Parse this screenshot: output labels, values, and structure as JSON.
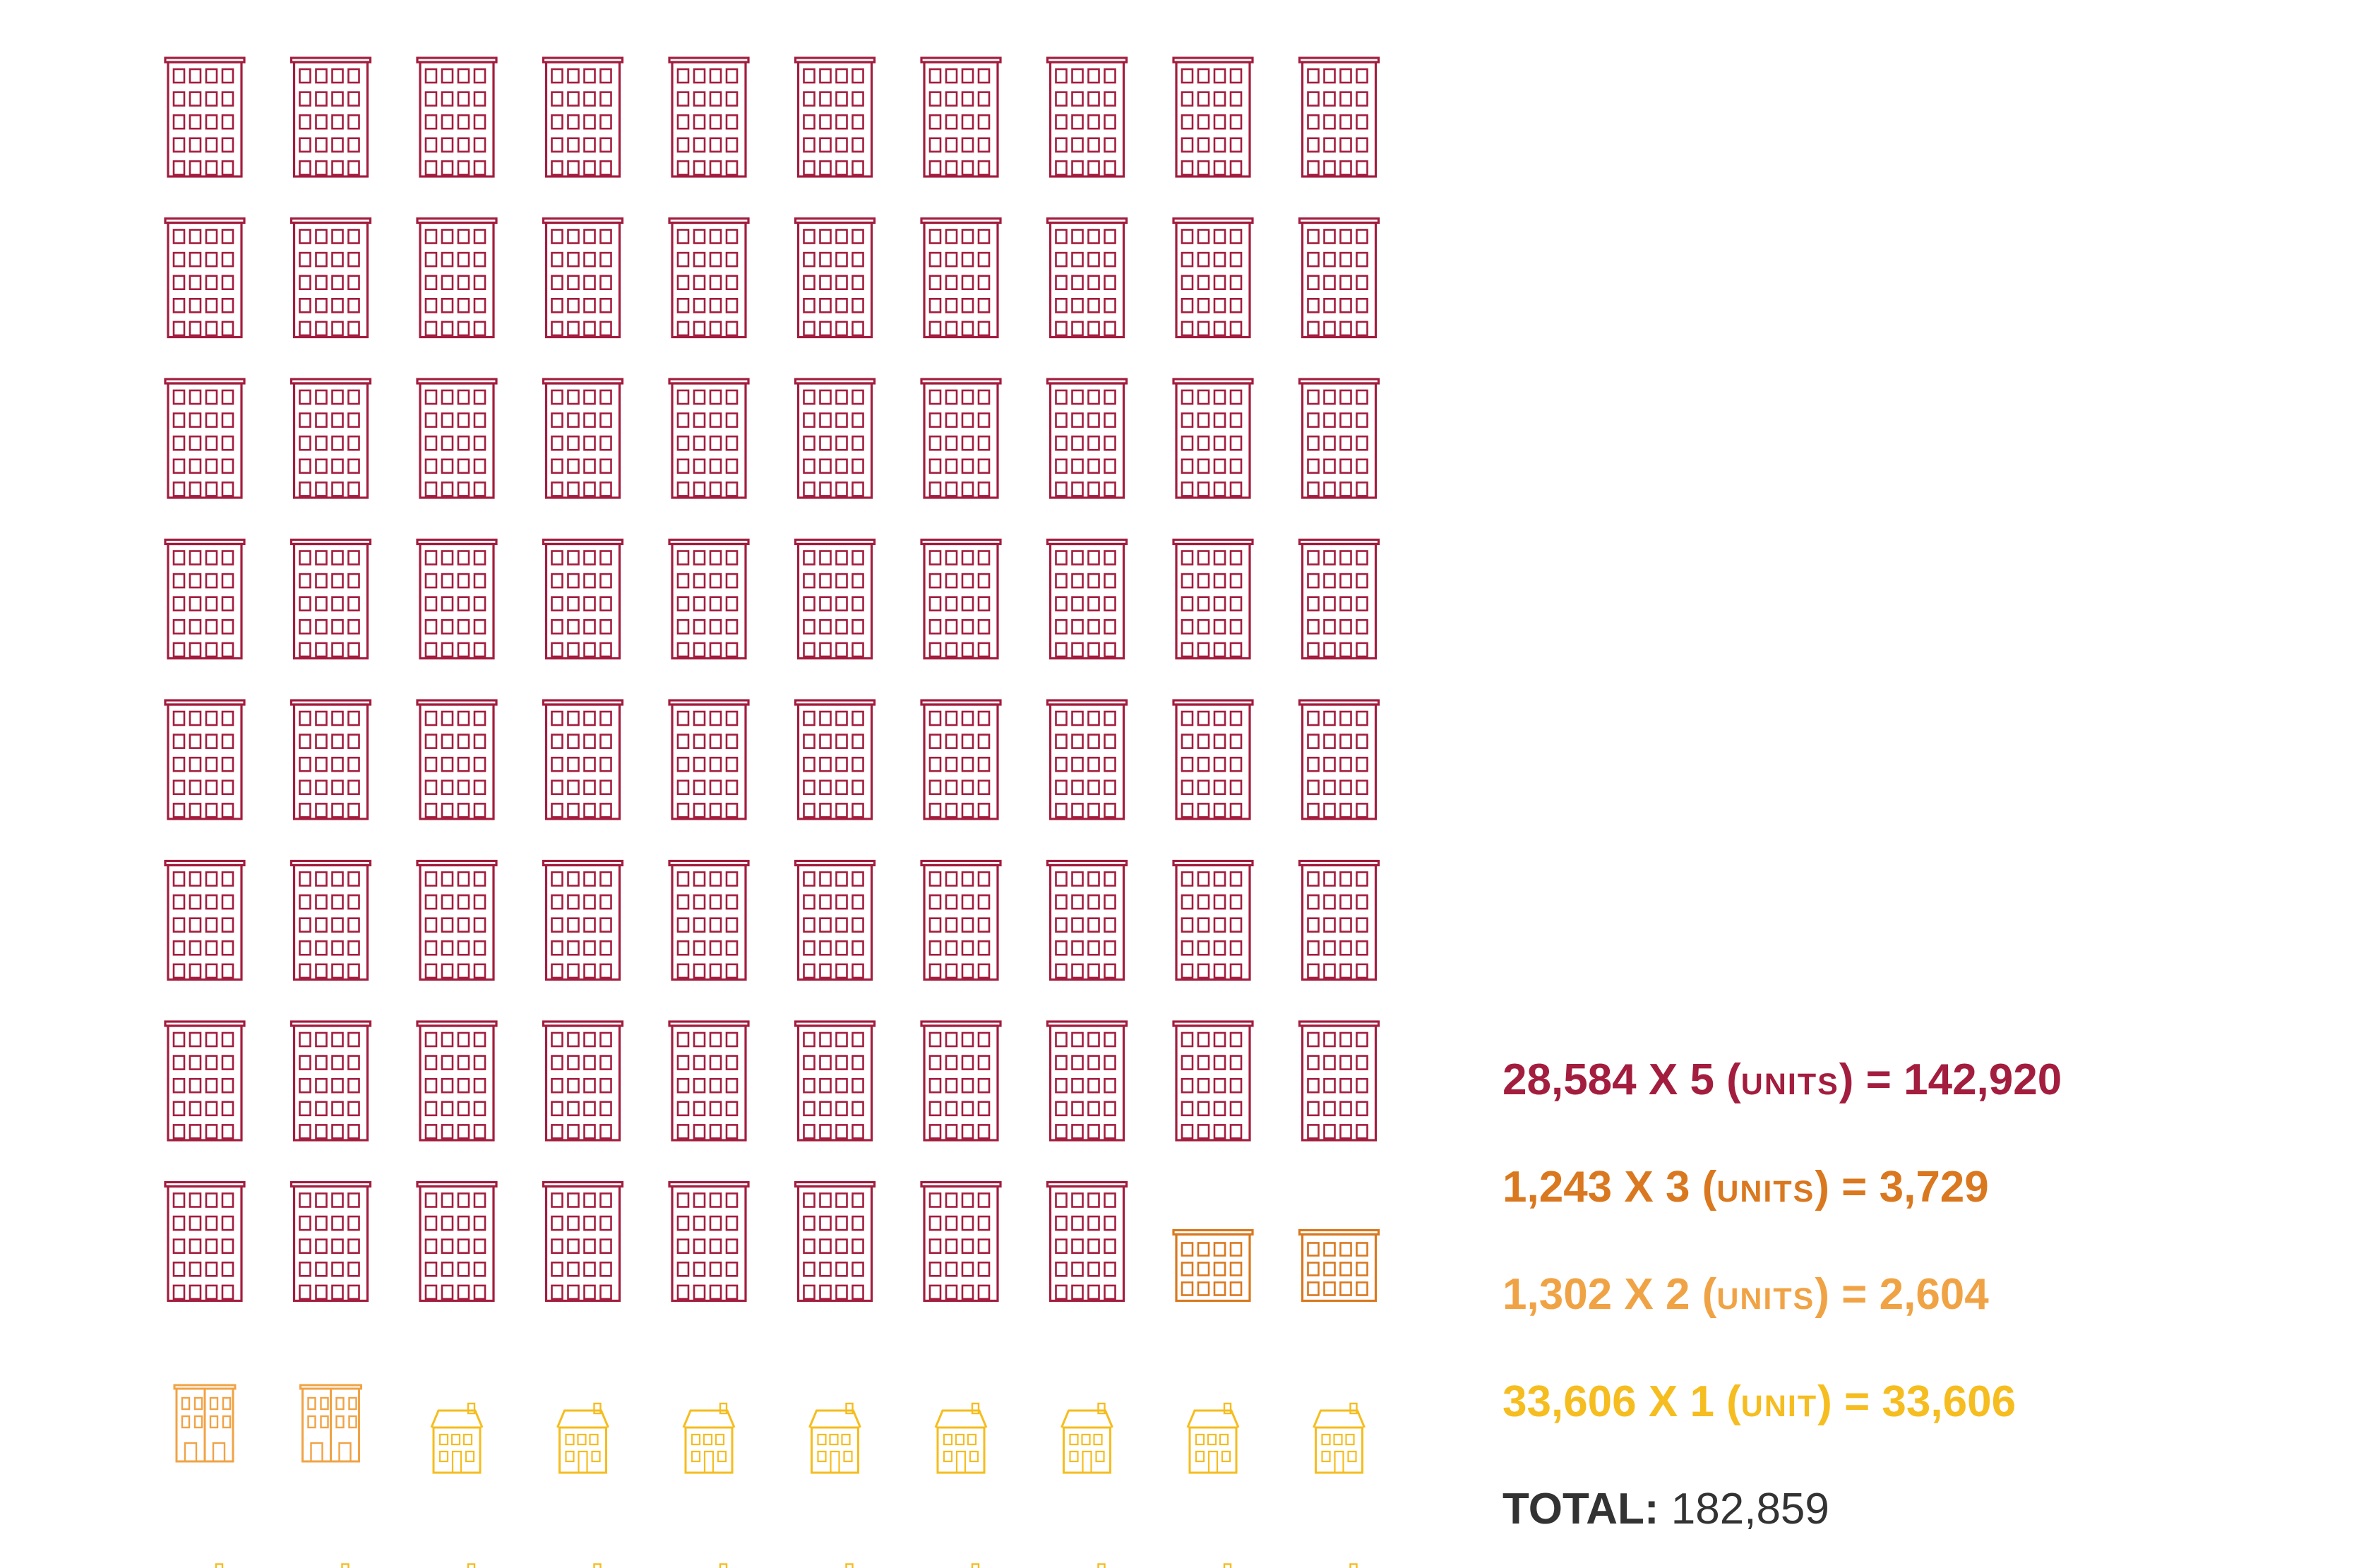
{
  "chart_data": {
    "type": "pictogram",
    "total_icons": 100,
    "columns": 10,
    "series": [
      {
        "buildings": "28,584",
        "multiplier": "5",
        "unit_word": "units",
        "result": "142,920",
        "icon": "apartment-building-icon",
        "color": "#A31D3E",
        "icon_count": 78
      },
      {
        "buildings": "1,243",
        "multiplier": "3",
        "unit_word": "units",
        "result": "3,729",
        "icon": "triplex-building-icon",
        "color": "#D9781F",
        "icon_count": 2
      },
      {
        "buildings": "1,302",
        "multiplier": "2",
        "unit_word": "units",
        "result": "2,604",
        "icon": "duplex-building-icon",
        "color": "#F0A345",
        "icon_count": 2
      },
      {
        "buildings": "33,606",
        "multiplier": "1",
        "unit_word": "unit",
        "result": "33,606",
        "icon": "house-icon",
        "color": "#F5BD1F",
        "icon_count": 18
      }
    ],
    "total": {
      "label": "TOTAL:",
      "value": "182,859",
      "color": "#333333"
    }
  },
  "legend": [
    {
      "a": "28,584 X 5 (",
      "unit": "units",
      "b": ") = 142,920"
    },
    {
      "a": "1,243 X 3 (",
      "unit": "units",
      "b": ") = 3,729"
    },
    {
      "a": "1,302 X 2 (",
      "unit": "units",
      "b": ") = 2,604"
    },
    {
      "a": "33,606 X 1 (",
      "unit": "unit",
      "b": ") = 33,606"
    }
  ]
}
